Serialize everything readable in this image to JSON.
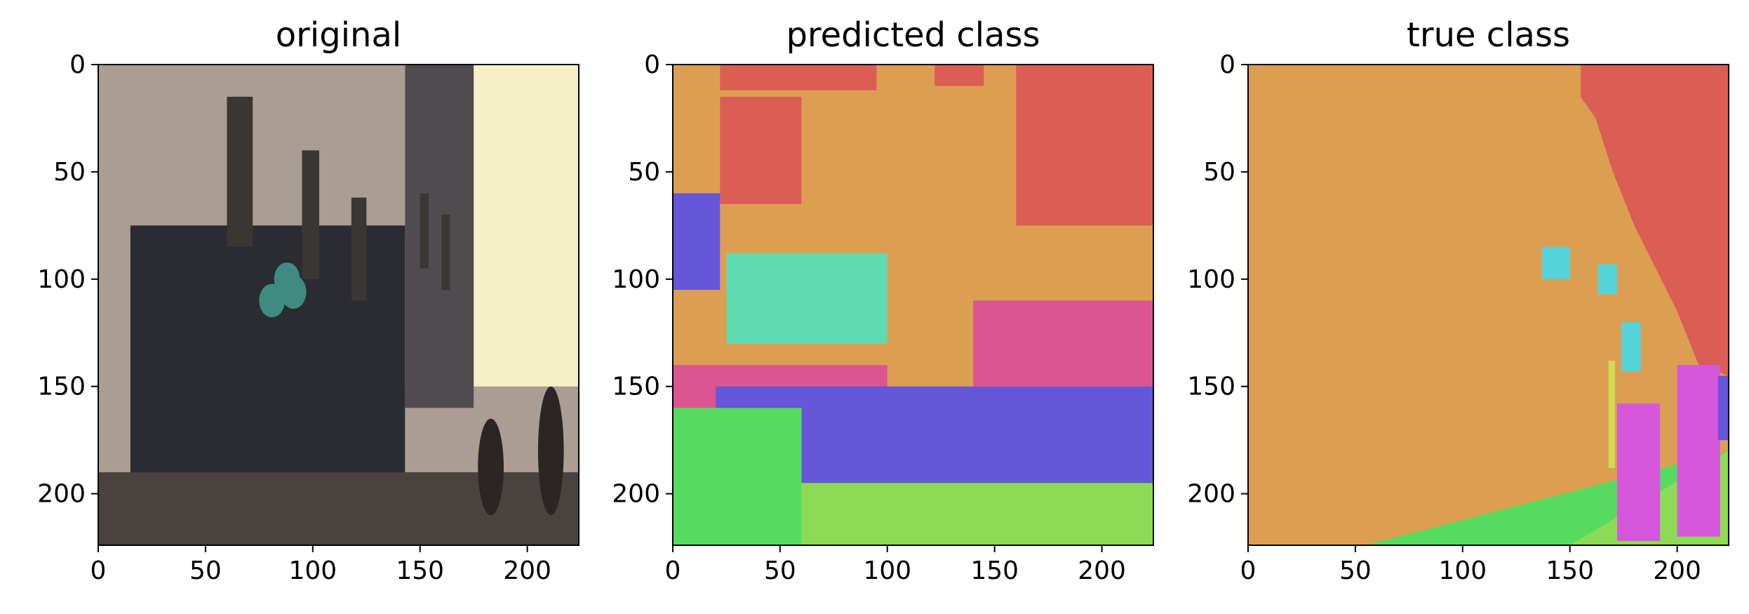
{
  "chart_data": [
    {
      "type": "image",
      "title": "original",
      "x_ticks": [
        0,
        50,
        100,
        150,
        200
      ],
      "y_ticks": [
        0,
        50,
        100,
        150,
        200
      ],
      "xlim": [
        0,
        224
      ],
      "ylim": [
        224,
        0
      ],
      "content": "street-scene photo",
      "regions": [
        {
          "label": "sky",
          "color": "#f4f1c4",
          "x": [
            120,
            224
          ],
          "y": [
            0,
            150
          ]
        },
        {
          "label": "building",
          "color": "#a99d94",
          "x": [
            0,
            143
          ],
          "y": [
            0,
            80
          ]
        },
        {
          "label": "dark-building",
          "color": "#4f4b4e",
          "x": [
            143,
            175
          ],
          "y": [
            0,
            160
          ]
        },
        {
          "label": "storefront",
          "color": "#2a2c32",
          "x": [
            15,
            143
          ],
          "y": [
            75,
            210
          ]
        },
        {
          "label": "pavement",
          "color": "#4a423f",
          "x": [
            0,
            224
          ],
          "y": [
            190,
            224
          ]
        }
      ]
    },
    {
      "type": "heatmap",
      "title": "predicted class",
      "x_ticks": [
        0,
        50,
        100,
        150,
        200
      ],
      "y_ticks": [
        0,
        50,
        100,
        150,
        200
      ],
      "xlim": [
        0,
        224
      ],
      "ylim": [
        224,
        0
      ],
      "background_color": "#dc9f52",
      "regions": [
        {
          "label": "class-red",
          "color": "#db5e55",
          "x": [
            160,
            224
          ],
          "y": [
            0,
            75
          ]
        },
        {
          "label": "class-red",
          "color": "#db5e55",
          "x": [
            22,
            60
          ],
          "y": [
            15,
            65
          ]
        },
        {
          "label": "class-red",
          "color": "#db5e55",
          "x": [
            22,
            95
          ],
          "y": [
            0,
            12
          ]
        },
        {
          "label": "class-red",
          "color": "#db5e55",
          "x": [
            122,
            145
          ],
          "y": [
            0,
            10
          ]
        },
        {
          "label": "class-blue",
          "color": "#6657d9",
          "x": [
            0,
            22
          ],
          "y": [
            60,
            105
          ]
        },
        {
          "label": "class-mint",
          "color": "#5fdbb1",
          "x": [
            25,
            100
          ],
          "y": [
            88,
            130
          ]
        },
        {
          "label": "class-pink",
          "color": "#db5590",
          "x": [
            140,
            224
          ],
          "y": [
            110,
            150
          ]
        },
        {
          "label": "class-pink",
          "color": "#db5590",
          "x": [
            0,
            100
          ],
          "y": [
            140,
            165
          ]
        },
        {
          "label": "class-blue",
          "color": "#6657d9",
          "x": [
            20,
            224
          ],
          "y": [
            150,
            200
          ]
        },
        {
          "label": "class-green",
          "color": "#57db5e",
          "x": [
            0,
            60
          ],
          "y": [
            160,
            224
          ]
        },
        {
          "label": "class-lime",
          "color": "#8ddb55",
          "x": [
            60,
            224
          ],
          "y": [
            195,
            224
          ]
        }
      ]
    },
    {
      "type": "heatmap",
      "title": "true class",
      "x_ticks": [
        0,
        50,
        100,
        150,
        200
      ],
      "y_ticks": [
        0,
        50,
        100,
        150,
        200
      ],
      "xlim": [
        0,
        224
      ],
      "ylim": [
        224,
        0
      ],
      "background_color": "#dc9f52",
      "regions": [
        {
          "label": "class-red",
          "color": "#db5e55",
          "shape": "sky",
          "x": [
            155,
            224
          ],
          "y": [
            0,
            145
          ]
        },
        {
          "label": "class-green",
          "color": "#57db5e",
          "shape": "road",
          "x": [
            55,
            224
          ],
          "y": [
            190,
            224
          ]
        },
        {
          "label": "class-cyan",
          "color": "#55d3db",
          "x": [
            137,
            150
          ],
          "y": [
            85,
            100
          ]
        },
        {
          "label": "class-cyan",
          "color": "#55d3db",
          "x": [
            163,
            172
          ],
          "y": [
            93,
            107
          ]
        },
        {
          "label": "class-cyan",
          "color": "#55d3db",
          "x": [
            174,
            183
          ],
          "y": [
            120,
            143
          ]
        },
        {
          "label": "class-yellow",
          "color": "#cfdb55",
          "x": [
            168,
            171
          ],
          "y": [
            138,
            188
          ]
        },
        {
          "label": "class-magenta",
          "color": "#d657db",
          "x": [
            172,
            192
          ],
          "y": [
            158,
            222
          ]
        },
        {
          "label": "class-magenta",
          "color": "#d657db",
          "x": [
            200,
            220
          ],
          "y": [
            140,
            220
          ]
        },
        {
          "label": "class-blue",
          "color": "#6657d9",
          "x": [
            219,
            224
          ],
          "y": [
            145,
            175
          ]
        }
      ]
    }
  ]
}
